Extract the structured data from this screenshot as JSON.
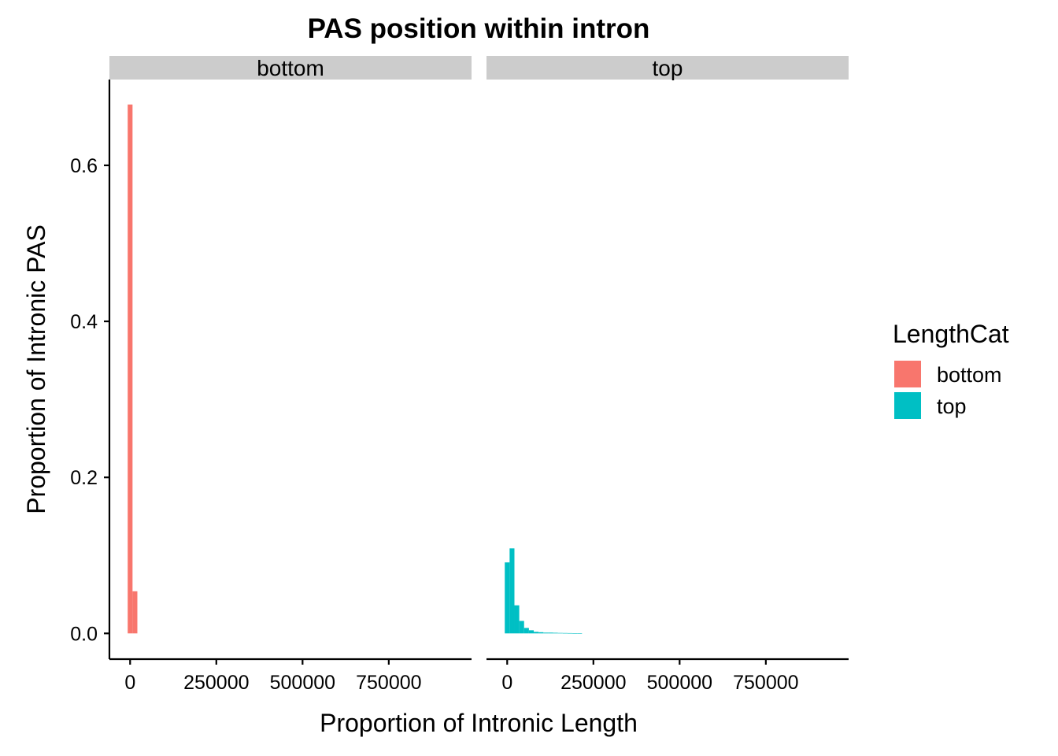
{
  "chart_data": {
    "type": "bar",
    "title": "PAS position within intron",
    "xlabel": "Proportion of Intronic Length",
    "ylabel": "Proportion of Intronic PAS",
    "x_ticks": [
      0,
      250000,
      500000,
      750000
    ],
    "x_tick_labels": [
      "0",
      "250000",
      "500000",
      "750000"
    ],
    "y_ticks": [
      0.0,
      0.2,
      0.4,
      0.6
    ],
    "y_tick_labels": [
      "0.0",
      "0.2",
      "0.4",
      "0.6"
    ],
    "xlim": [
      -60000,
      990000
    ],
    "ylim": [
      -0.033,
      0.71
    ],
    "bin_width": 14000,
    "legend": {
      "title": "LengthCat",
      "position": "right",
      "entries": [
        {
          "label": "bottom",
          "color": "#F8766D"
        },
        {
          "label": "top",
          "color": "#00BFC4"
        }
      ]
    },
    "panels": [
      {
        "strip": "bottom",
        "color": "#F8766D",
        "bins": [
          {
            "x": 0,
            "y": 0.678
          },
          {
            "x": 14000,
            "y": 0.054
          }
        ]
      },
      {
        "strip": "top",
        "color": "#00BFC4",
        "bins": [
          {
            "x": 0,
            "y": 0.091
          },
          {
            "x": 14000,
            "y": 0.109
          },
          {
            "x": 28000,
            "y": 0.036
          },
          {
            "x": 42000,
            "y": 0.016
          },
          {
            "x": 56000,
            "y": 0.007
          },
          {
            "x": 70000,
            "y": 0.004
          },
          {
            "x": 84000,
            "y": 0.002
          },
          {
            "x": 98000,
            "y": 0.0015
          },
          {
            "x": 112000,
            "y": 0.001
          },
          {
            "x": 126000,
            "y": 0.001
          },
          {
            "x": 140000,
            "y": 0.0008
          },
          {
            "x": 154000,
            "y": 0.0006
          },
          {
            "x": 168000,
            "y": 0.0005
          },
          {
            "x": 182000,
            "y": 0.0004
          },
          {
            "x": 196000,
            "y": 0.0003
          },
          {
            "x": 210000,
            "y": 0.0002
          }
        ]
      }
    ]
  }
}
